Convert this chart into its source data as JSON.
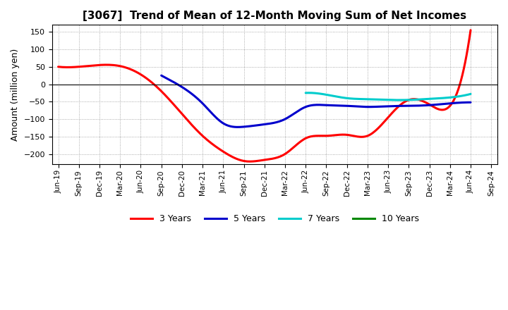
{
  "title": "[3067]  Trend of Mean of 12-Month Moving Sum of Net Incomes",
  "ylabel": "Amount (million yen)",
  "background_color": "#ffffff",
  "grid_color": "#aaaaaa",
  "ylim": [
    -230,
    170
  ],
  "yticks": [
    -200,
    -150,
    -100,
    -50,
    0,
    50,
    100,
    150
  ],
  "xtick_labels": [
    "Jun-19",
    "Sep-19",
    "Dec-19",
    "Mar-20",
    "Jun-20",
    "Sep-20",
    "Dec-20",
    "Mar-21",
    "Jun-21",
    "Sep-21",
    "Dec-21",
    "Mar-22",
    "Jun-22",
    "Sep-22",
    "Dec-22",
    "Mar-23",
    "Jun-23",
    "Sep-23",
    "Dec-23",
    "Mar-24",
    "Jun-24",
    "Sep-24"
  ],
  "series": [
    {
      "name": "3 Years",
      "color": "#ff0000",
      "xi": [
        0,
        1,
        2,
        3,
        4,
        5,
        6,
        7,
        8,
        9,
        10,
        11,
        12,
        13,
        14,
        15,
        16,
        17,
        18,
        19,
        20
      ],
      "values": [
        50,
        50,
        55,
        52,
        28,
        -20,
        -85,
        -148,
        -193,
        -220,
        -217,
        -200,
        -155,
        -148,
        -145,
        -148,
        -95,
        -45,
        -58,
        -62,
        155
      ]
    },
    {
      "name": "5 Years",
      "color": "#0000cc",
      "xi": [
        5,
        6,
        7,
        8,
        9,
        10,
        11,
        12,
        13,
        14,
        15,
        16,
        17,
        18,
        19,
        20
      ],
      "values": [
        25,
        -8,
        -55,
        -112,
        -122,
        -115,
        -100,
        -65,
        -60,
        -62,
        -65,
        -63,
        -62,
        -60,
        -55,
        -52
      ]
    },
    {
      "name": "7 Years",
      "color": "#00cccc",
      "xi": [
        12,
        13,
        14,
        15,
        16,
        17,
        18,
        19,
        20
      ],
      "values": [
        -25,
        -30,
        -40,
        -43,
        -45,
        -45,
        -42,
        -38,
        -28
      ]
    },
    {
      "name": "10 Years",
      "color": "#008800",
      "xi": [],
      "values": []
    }
  ],
  "legend_entries": [
    "3 Years",
    "5 Years",
    "7 Years",
    "10 Years"
  ],
  "legend_colors": [
    "#ff0000",
    "#0000cc",
    "#00cccc",
    "#008800"
  ]
}
